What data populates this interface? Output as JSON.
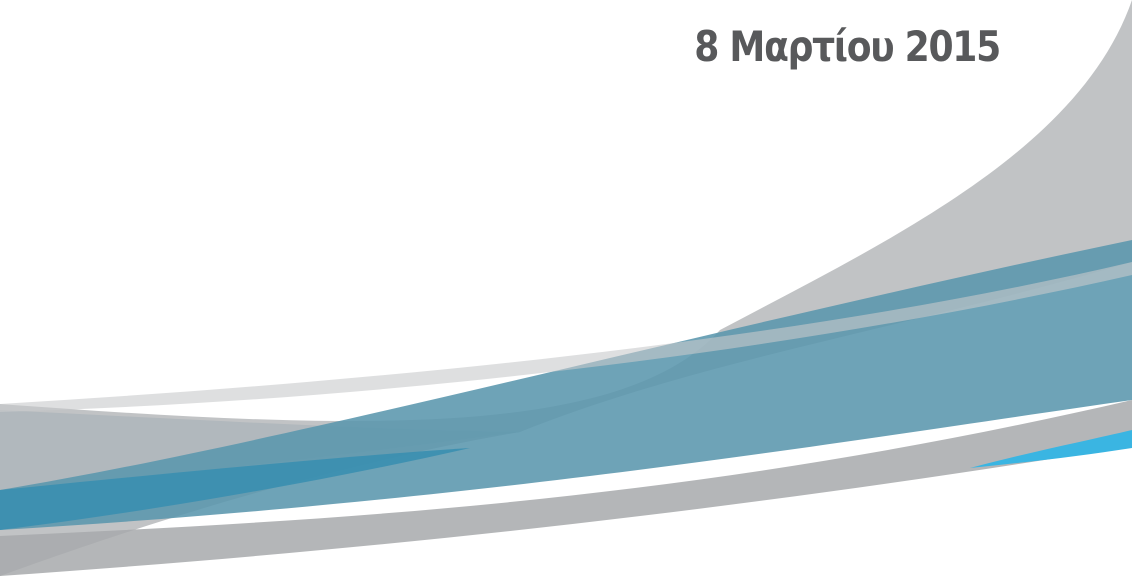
{
  "slide": {
    "date": "8 Μαρτίου 2015"
  },
  "colors": {
    "text": "#58595b",
    "gray_band": "#bcbec0",
    "dark_blue_band": "#3b7596",
    "mid_blue_band": "#5a96ad",
    "bright_blue_accent": "#3ab5e2",
    "background": "#ffffff"
  }
}
